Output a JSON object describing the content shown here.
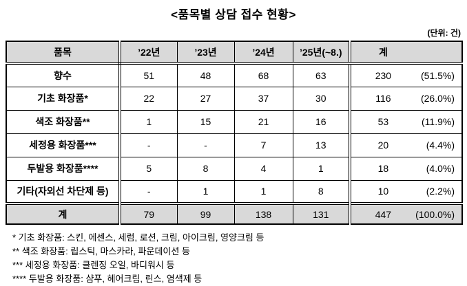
{
  "title": "<품목별 상담 접수 현황>",
  "unit_note": "(단위: 건)",
  "table": {
    "columns": [
      "품목",
      "’22년",
      "’23년",
      "’24년",
      "’25년(~8.)",
      "계"
    ],
    "rows": [
      {
        "item": "향수",
        "y22": "51",
        "y23": "48",
        "y24": "68",
        "y25": "63",
        "total": "230",
        "pct": "(51.5%)"
      },
      {
        "item": "기초 화장품*",
        "y22": "22",
        "y23": "27",
        "y24": "37",
        "y25": "30",
        "total": "116",
        "pct": "(26.0%)"
      },
      {
        "item": "색조 화장품**",
        "y22": "1",
        "y23": "15",
        "y24": "21",
        "y25": "16",
        "total": "53",
        "pct": "(11.9%)"
      },
      {
        "item": "세정용 화장품***",
        "y22": "-",
        "y23": "-",
        "y24": "7",
        "y25": "13",
        "total": "20",
        "pct": "(4.4%)"
      },
      {
        "item": "두발용 화장품****",
        "y22": "5",
        "y23": "8",
        "y24": "4",
        "y25": "1",
        "total": "18",
        "pct": "(4.0%)"
      },
      {
        "item": "기타(자외선 차단제 등)",
        "y22": "-",
        "y23": "1",
        "y24": "1",
        "y25": "8",
        "total": "10",
        "pct": "(2.2%)"
      }
    ],
    "total_row": {
      "item": "계",
      "y22": "79",
      "y23": "99",
      "y24": "138",
      "y25": "131",
      "total": "447",
      "pct": "(100.0%)"
    }
  },
  "footnotes": [
    "* 기초 화장품: 스킨, 에센스, 세럼, 로션, 크림, 아이크림, 영양크림 등",
    "** 색조 화장품: 립스틱, 마스카라, 파운데이션 등",
    "*** 세정용 화장품: 클렌징 오일, 바디워시 등",
    "**** 두발용 화장품: 샴푸, 헤어크림, 린스, 염색제 등"
  ],
  "colors": {
    "header_bg": "#d9d9d9",
    "border": "#000000",
    "text": "#000000"
  }
}
